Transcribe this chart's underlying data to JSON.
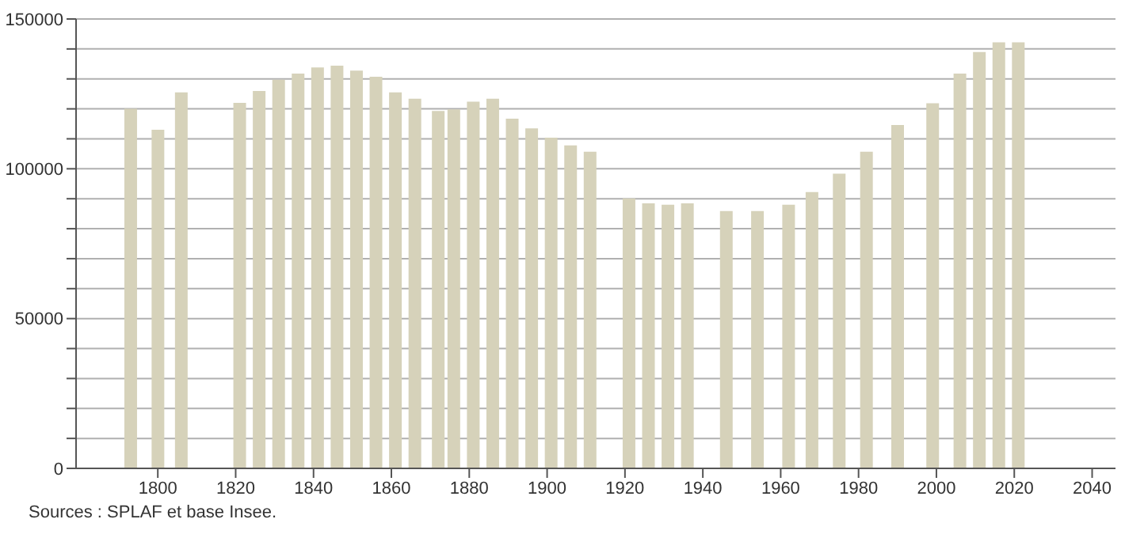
{
  "chart_data": {
    "type": "bar",
    "x": [
      1793,
      1800,
      1806,
      1821,
      1826,
      1831,
      1836,
      1841,
      1846,
      1851,
      1856,
      1861,
      1866,
      1872,
      1876,
      1881,
      1886,
      1891,
      1896,
      1901,
      1906,
      1911,
      1921,
      1926,
      1931,
      1936,
      1946,
      1954,
      1962,
      1968,
      1975,
      1982,
      1990,
      1999,
      2006,
      2011,
      2016,
      2021
    ],
    "values": [
      120000,
      113000,
      125500,
      122000,
      126000,
      129700,
      131800,
      133800,
      134400,
      132800,
      130700,
      125500,
      123400,
      119300,
      119800,
      122400,
      123400,
      116700,
      113500,
      110400,
      107800,
      105700,
      90100,
      88500,
      88000,
      88500,
      85900,
      85900,
      88000,
      92200,
      98400,
      105700,
      114600,
      121900,
      131800,
      139000,
      142200,
      142200
    ],
    "color": "#d6d2ba",
    "xlim": [
      1779,
      2046
    ],
    "xticks": [
      1800,
      1820,
      1840,
      1860,
      1880,
      1900,
      1920,
      1940,
      1960,
      1980,
      2000,
      2020,
      2040
    ],
    "ylim": [
      0,
      150000
    ],
    "yticks": [
      0,
      {
        "value": 10000,
        "label": null
      },
      {
        "value": 20000,
        "label": null
      },
      {
        "value": 30000,
        "label": null
      },
      {
        "value": 40000,
        "label": null
      },
      50000,
      {
        "value": 60000,
        "label": null
      },
      {
        "value": 70000,
        "label": null
      },
      {
        "value": 80000,
        "label": null
      },
      {
        "value": 90000,
        "label": null
      },
      100000,
      {
        "value": 110000,
        "label": null
      },
      {
        "value": 120000,
        "label": null
      },
      {
        "value": 130000,
        "label": null
      },
      {
        "value": 140000,
        "label": null
      },
      150000
    ],
    "grid": "y",
    "annotations": [
      "Sources : SPLAF et base Insee."
    ]
  }
}
